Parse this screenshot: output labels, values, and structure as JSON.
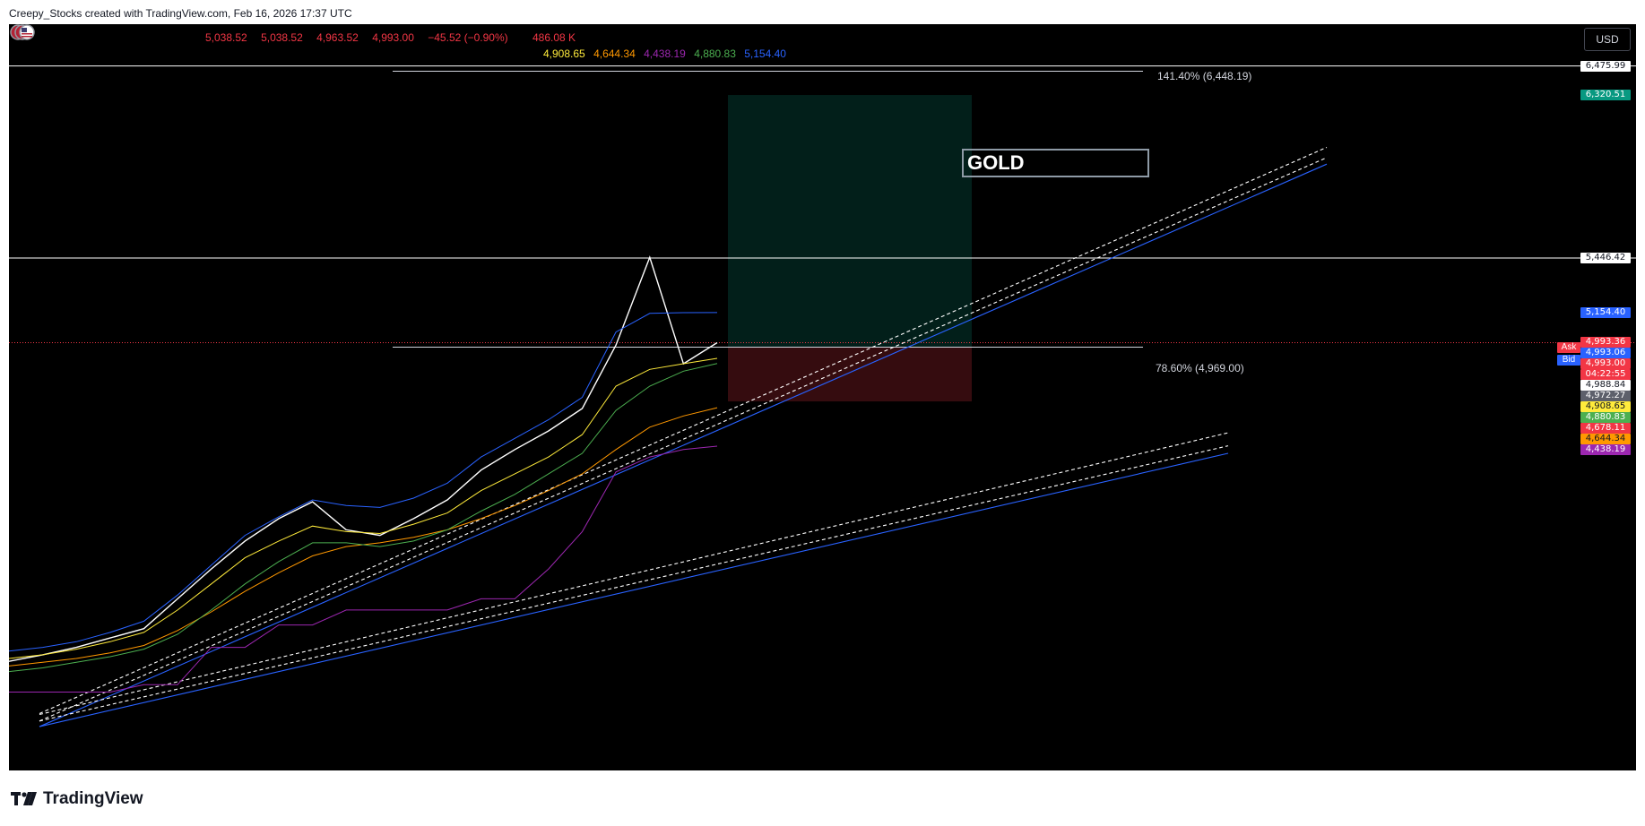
{
  "header": {
    "credit": "Creepy_Stocks created with TradingView.com, Feb 16, 2026 17:37 UTC"
  },
  "legend": {
    "ohlc": {
      "open": "5,038.52",
      "high": "5,038.52",
      "low": "4,963.52",
      "close": "4,993.00",
      "change": "−45.52 (−0.90%)",
      "volume": "486.08 K",
      "color": "#f23645"
    },
    "moving_averages": [
      {
        "value": "4,908.65",
        "color": "#ffeb3b"
      },
      {
        "value": "4,644.34",
        "color": "#ff9800"
      },
      {
        "value": "4,438.19",
        "color": "#9c27b0"
      },
      {
        "value": "4,880.83",
        "color": "#4caf50"
      },
      {
        "value": "5,154.40",
        "color": "#2962ff"
      }
    ]
  },
  "toolbar": {
    "currency": "USD"
  },
  "annotations": {
    "fib_upper": "141.40% (6,448.19)",
    "fib_lower": "78.60% (4,969.00)",
    "symbol_note": "GOLD"
  },
  "price_scale": {
    "tags": [
      {
        "text": "6,475.99",
        "bg": "#ffffff",
        "fg": "#131722"
      },
      {
        "text": "6,320.51",
        "bg": "#089981",
        "fg": "#ffffff"
      },
      {
        "text": "5,446.42",
        "bg": "#ffffff",
        "fg": "#131722"
      },
      {
        "text": "5,154.40",
        "bg": "#2962ff",
        "fg": "#ffffff"
      },
      {
        "text": "4,993.36",
        "bg": "#f23645",
        "fg": "#ffffff"
      },
      {
        "text": "4,993.06",
        "bg": "#2962ff",
        "fg": "#ffffff"
      },
      {
        "text": "4,993.00",
        "bg": "#f23645",
        "fg": "#ffffff"
      },
      {
        "text": "04:22:55",
        "bg": "#f23645",
        "fg": "#ffffff"
      },
      {
        "text": "4,988.84",
        "bg": "#ffffff",
        "fg": "#131722"
      },
      {
        "text": "4,972.27",
        "bg": "#5d606b",
        "fg": "#ffffff"
      },
      {
        "text": "4,908.65",
        "bg": "#ffeb3b",
        "fg": "#131722"
      },
      {
        "text": "4,880.83",
        "bg": "#4caf50",
        "fg": "#ffffff"
      },
      {
        "text": "4,678.11",
        "bg": "#f23645",
        "fg": "#ffffff"
      },
      {
        "text": "4,644.34",
        "bg": "#ff9800",
        "fg": "#131722"
      },
      {
        "text": "4,438.19",
        "bg": "#9c27b0",
        "fg": "#ffffff"
      }
    ],
    "ask_label": "Ask",
    "bid_label": "Bid"
  },
  "brand": {
    "name": "TradingView"
  },
  "chart_data": {
    "type": "line",
    "series": [
      {
        "values": [
          3285,
          3320,
          3360,
          3410,
          3460,
          3620,
          3780,
          3930,
          4050,
          4140,
          3990,
          3960,
          4050,
          4150,
          4310,
          4420,
          4520,
          4640,
          4980,
          5450,
          4880,
          4993
        ]
      },
      {
        "values": [
          3300,
          3320,
          3350,
          3390,
          3440,
          3560,
          3700,
          3840,
          3930,
          4010,
          3980,
          3970,
          4020,
          4080,
          4200,
          4290,
          4380,
          4500,
          4760,
          4850,
          4880,
          4908.65
        ]
      },
      {
        "values": [
          3260,
          3280,
          3300,
          3330,
          3370,
          3450,
          3550,
          3660,
          3760,
          3850,
          3900,
          3920,
          3950,
          3990,
          4050,
          4120,
          4200,
          4290,
          4420,
          4540,
          4600,
          4644.34
        ]
      },
      {
        "values": [
          3120,
          3120,
          3120,
          3120,
          3160,
          3160,
          3360,
          3360,
          3480,
          3480,
          3560,
          3560,
          3560,
          3560,
          3620,
          3620,
          3780,
          3980,
          4300,
          4380,
          4420,
          4438.19
        ]
      },
      {
        "values": [
          3230,
          3250,
          3280,
          3310,
          3350,
          3430,
          3560,
          3700,
          3820,
          3920,
          3920,
          3900,
          3930,
          3990,
          4090,
          4180,
          4290,
          4400,
          4630,
          4760,
          4840,
          4880.83
        ]
      },
      {
        "values": [
          3340,
          3360,
          3390,
          3440,
          3500,
          3640,
          3800,
          3960,
          4060,
          4150,
          4120,
          4110,
          4160,
          4240,
          4380,
          4480,
          4580,
          4700,
          5050,
          5150,
          5154,
          5154.4
        ]
      }
    ],
    "levels": [
      6475.99,
      5446.42,
      4993.0
    ],
    "fib_levels": [
      6448.19,
      4969.0
    ],
    "position": {
      "entry": 4969.0,
      "target": 6320.51,
      "stop": 4678.11
    },
    "ylim": [
      2700,
      6700
    ],
    "grid": false,
    "legend": "top-left"
  }
}
